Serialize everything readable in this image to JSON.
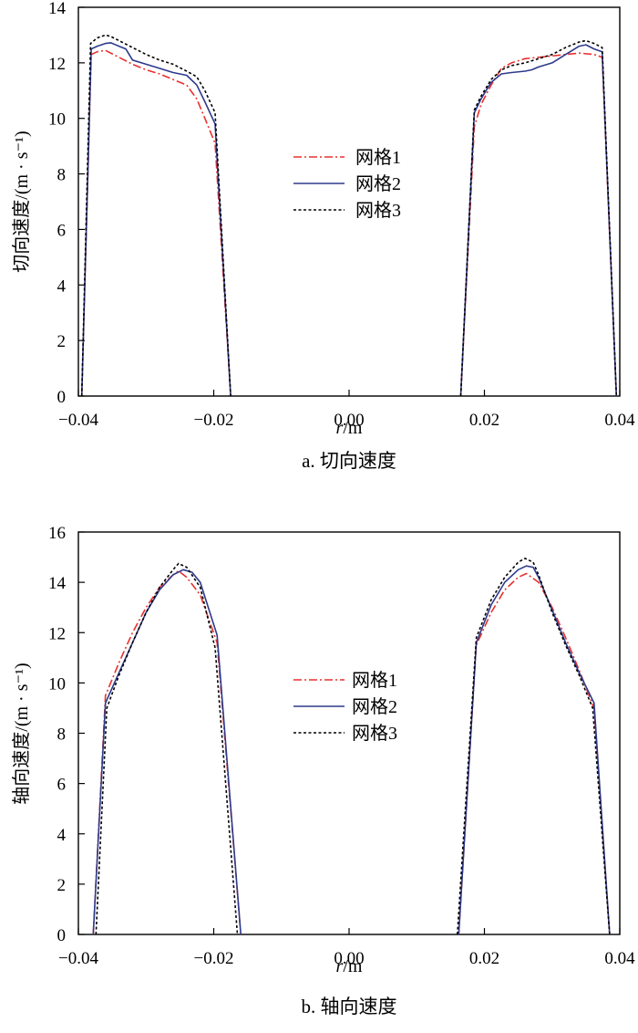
{
  "chart_data": [
    {
      "type": "line",
      "caption": "a. 切向速度",
      "xlabel_italic": "r",
      "xlabel_unit": "/m",
      "ylabel": "切向速度/",
      "ylabel_unit": "(m · s⁻¹)",
      "xlim": [
        -0.04,
        0.04
      ],
      "ylim": [
        0,
        14
      ],
      "xticks": [
        -0.04,
        -0.02,
        0.0,
        0.02,
        0.04
      ],
      "xtick_labels": [
        "-0.04",
        "-0.02",
        "0.00",
        "0.02",
        "0.04"
      ],
      "yticks": [
        0,
        2,
        4,
        6,
        8,
        10,
        12,
        14
      ],
      "ytick_labels": [
        "0",
        "2",
        "4",
        "6",
        "8",
        "10",
        "12",
        "14"
      ],
      "legend_position": "center",
      "series": [
        {
          "name": "网格1",
          "color": "#e8312f",
          "dash": "dashdot",
          "segments": [
            [
              [
                -0.0395,
                0
              ],
              [
                -0.0381,
                12.3
              ],
              [
                -0.0372,
                12.4
              ],
              [
                -0.036,
                12.45
              ],
              [
                -0.034,
                12.2
              ],
              [
                -0.032,
                11.95
              ],
              [
                -0.03,
                11.75
              ],
              [
                -0.028,
                11.6
              ],
              [
                -0.026,
                11.4
              ],
              [
                -0.024,
                11.2
              ],
              [
                -0.0225,
                10.7
              ],
              [
                -0.0213,
                10.0
              ],
              [
                -0.0198,
                9.1
              ],
              [
                -0.0175,
                0
              ]
            ],
            [
              [
                0.0165,
                0
              ],
              [
                0.0185,
                9.7
              ],
              [
                0.0195,
                10.5
              ],
              [
                0.021,
                11.2
              ],
              [
                0.0225,
                11.8
              ],
              [
                0.024,
                12.0
              ],
              [
                0.026,
                12.15
              ],
              [
                0.028,
                12.2
              ],
              [
                0.03,
                12.25
              ],
              [
                0.032,
                12.3
              ],
              [
                0.034,
                12.35
              ],
              [
                0.0362,
                12.3
              ],
              [
                0.0374,
                12.2
              ],
              [
                0.0395,
                0
              ]
            ]
          ]
        },
        {
          "name": "网格2",
          "color": "#2d3a8c",
          "dash": "solid",
          "segments": [
            [
              [
                -0.0395,
                0
              ],
              [
                -0.0381,
                12.5
              ],
              [
                -0.0372,
                12.6
              ],
              [
                -0.036,
                12.7
              ],
              [
                -0.0352,
                12.72
              ],
              [
                -0.034,
                12.6
              ],
              [
                -0.033,
                12.5
              ],
              [
                -0.032,
                12.1
              ],
              [
                -0.03,
                11.95
              ],
              [
                -0.028,
                11.8
              ],
              [
                -0.026,
                11.65
              ],
              [
                -0.024,
                11.55
              ],
              [
                -0.0225,
                11.2
              ],
              [
                -0.0213,
                10.6
              ],
              [
                -0.0198,
                9.8
              ],
              [
                -0.0175,
                0
              ]
            ],
            [
              [
                0.0165,
                0
              ],
              [
                0.0185,
                10.2
              ],
              [
                0.0195,
                10.7
              ],
              [
                0.021,
                11.3
              ],
              [
                0.0225,
                11.6
              ],
              [
                0.024,
                11.65
              ],
              [
                0.026,
                11.7
              ],
              [
                0.027,
                11.75
              ],
              [
                0.028,
                11.85
              ],
              [
                0.03,
                12.0
              ],
              [
                0.032,
                12.3
              ],
              [
                0.034,
                12.6
              ],
              [
                0.035,
                12.65
              ],
              [
                0.0362,
                12.5
              ],
              [
                0.0374,
                12.4
              ],
              [
                0.0395,
                0
              ]
            ]
          ]
        },
        {
          "name": "网格3",
          "color": "#000000",
          "dash": "dotted",
          "segments": [
            [
              [
                -0.0395,
                0
              ],
              [
                -0.0382,
                12.7
              ],
              [
                -0.0372,
                12.9
              ],
              [
                -0.036,
                13.0
              ],
              [
                -0.0352,
                12.95
              ],
              [
                -0.034,
                12.8
              ],
              [
                -0.032,
                12.55
              ],
              [
                -0.03,
                12.3
              ],
              [
                -0.028,
                12.1
              ],
              [
                -0.026,
                11.95
              ],
              [
                -0.024,
                11.7
              ],
              [
                -0.0225,
                11.5
              ],
              [
                -0.0213,
                11.0
              ],
              [
                -0.0198,
                10.2
              ],
              [
                -0.0175,
                0
              ]
            ],
            [
              [
                0.0165,
                0
              ],
              [
                0.0185,
                10.3
              ],
              [
                0.0195,
                10.8
              ],
              [
                0.021,
                11.4
              ],
              [
                0.0225,
                11.75
              ],
              [
                0.024,
                11.9
              ],
              [
                0.026,
                12.0
              ],
              [
                0.028,
                12.15
              ],
              [
                0.03,
                12.3
              ],
              [
                0.032,
                12.55
              ],
              [
                0.034,
                12.75
              ],
              [
                0.035,
                12.8
              ],
              [
                0.0362,
                12.7
              ],
              [
                0.0374,
                12.55
              ],
              [
                0.0395,
                0
              ]
            ]
          ]
        }
      ]
    },
    {
      "type": "line",
      "caption": "b. 轴向速度",
      "xlabel_italic": "r",
      "xlabel_unit": "/m",
      "ylabel": "轴向速度/",
      "ylabel_unit": "(m · s⁻¹)",
      "xlim": [
        -0.04,
        0.04
      ],
      "ylim": [
        0,
        16
      ],
      "xticks": [
        -0.04,
        -0.02,
        0.0,
        0.02,
        0.04
      ],
      "xtick_labels": [
        "-0.04",
        "-0.02",
        "0.00",
        "0.02",
        "0.04"
      ],
      "yticks": [
        0,
        2,
        4,
        6,
        8,
        10,
        12,
        14,
        16
      ],
      "ytick_labels": [
        "0",
        "2",
        "4",
        "6",
        "8",
        "10",
        "12",
        "14",
        "16"
      ],
      "legend_position": "center",
      "series": [
        {
          "name": "网格1",
          "color": "#e8312f",
          "dash": "dashdot",
          "segments": [
            [
              [
                -0.0378,
                0
              ],
              [
                -0.036,
                9.5
              ],
              [
                -0.034,
                10.8
              ],
              [
                -0.032,
                12.0
              ],
              [
                -0.03,
                13.0
              ],
              [
                -0.028,
                13.8
              ],
              [
                -0.026,
                14.3
              ],
              [
                -0.0252,
                14.45
              ],
              [
                -0.024,
                14.2
              ],
              [
                -0.022,
                13.5
              ],
              [
                -0.0195,
                11.6
              ],
              [
                -0.016,
                0
              ]
            ],
            [
              [
                0.0162,
                0
              ],
              [
                0.0188,
                11.5
              ],
              [
                0.021,
                12.8
              ],
              [
                0.023,
                13.7
              ],
              [
                0.025,
                14.2
              ],
              [
                0.0262,
                14.35
              ],
              [
                0.028,
                14.0
              ],
              [
                0.03,
                13.0
              ],
              [
                0.032,
                11.8
              ],
              [
                0.034,
                10.5
              ],
              [
                0.0362,
                9.0
              ],
              [
                0.0385,
                0
              ]
            ]
          ]
        },
        {
          "name": "网格2",
          "color": "#2d3a8c",
          "dash": "solid",
          "segments": [
            [
              [
                -0.0378,
                0
              ],
              [
                -0.036,
                9.2
              ],
              [
                -0.034,
                10.4
              ],
              [
                -0.032,
                11.6
              ],
              [
                -0.03,
                12.8
              ],
              [
                -0.028,
                13.7
              ],
              [
                -0.026,
                14.3
              ],
              [
                -0.0245,
                14.5
              ],
              [
                -0.0232,
                14.4
              ],
              [
                -0.022,
                14.0
              ],
              [
                -0.0195,
                11.9
              ],
              [
                -0.016,
                0
              ]
            ],
            [
              [
                0.0162,
                0
              ],
              [
                0.0188,
                11.6
              ],
              [
                0.021,
                13.1
              ],
              [
                0.023,
                14.0
              ],
              [
                0.025,
                14.5
              ],
              [
                0.0262,
                14.65
              ],
              [
                0.0272,
                14.6
              ],
              [
                0.028,
                14.2
              ],
              [
                0.03,
                12.9
              ],
              [
                0.032,
                11.6
              ],
              [
                0.034,
                10.4
              ],
              [
                0.0362,
                9.2
              ],
              [
                0.0385,
                0
              ]
            ]
          ]
        },
        {
          "name": "网格3",
          "color": "#000000",
          "dash": "dotted",
          "segments": [
            [
              [
                -0.0374,
                0
              ],
              [
                -0.0358,
                9.0
              ],
              [
                -0.034,
                10.3
              ],
              [
                -0.032,
                11.6
              ],
              [
                -0.03,
                12.8
              ],
              [
                -0.028,
                13.8
              ],
              [
                -0.026,
                14.5
              ],
              [
                -0.0252,
                14.75
              ],
              [
                -0.024,
                14.6
              ],
              [
                -0.022,
                13.8
              ],
              [
                -0.0198,
                11.4
              ],
              [
                -0.0165,
                0
              ]
            ],
            [
              [
                0.016,
                0
              ],
              [
                0.0188,
                11.8
              ],
              [
                0.021,
                13.3
              ],
              [
                0.023,
                14.2
              ],
              [
                0.025,
                14.8
              ],
              [
                0.026,
                14.95
              ],
              [
                0.0272,
                14.8
              ],
              [
                0.028,
                14.3
              ],
              [
                0.03,
                12.8
              ],
              [
                0.032,
                11.5
              ],
              [
                0.034,
                10.3
              ],
              [
                0.036,
                9.0
              ],
              [
                0.0385,
                0
              ]
            ]
          ]
        }
      ]
    }
  ]
}
